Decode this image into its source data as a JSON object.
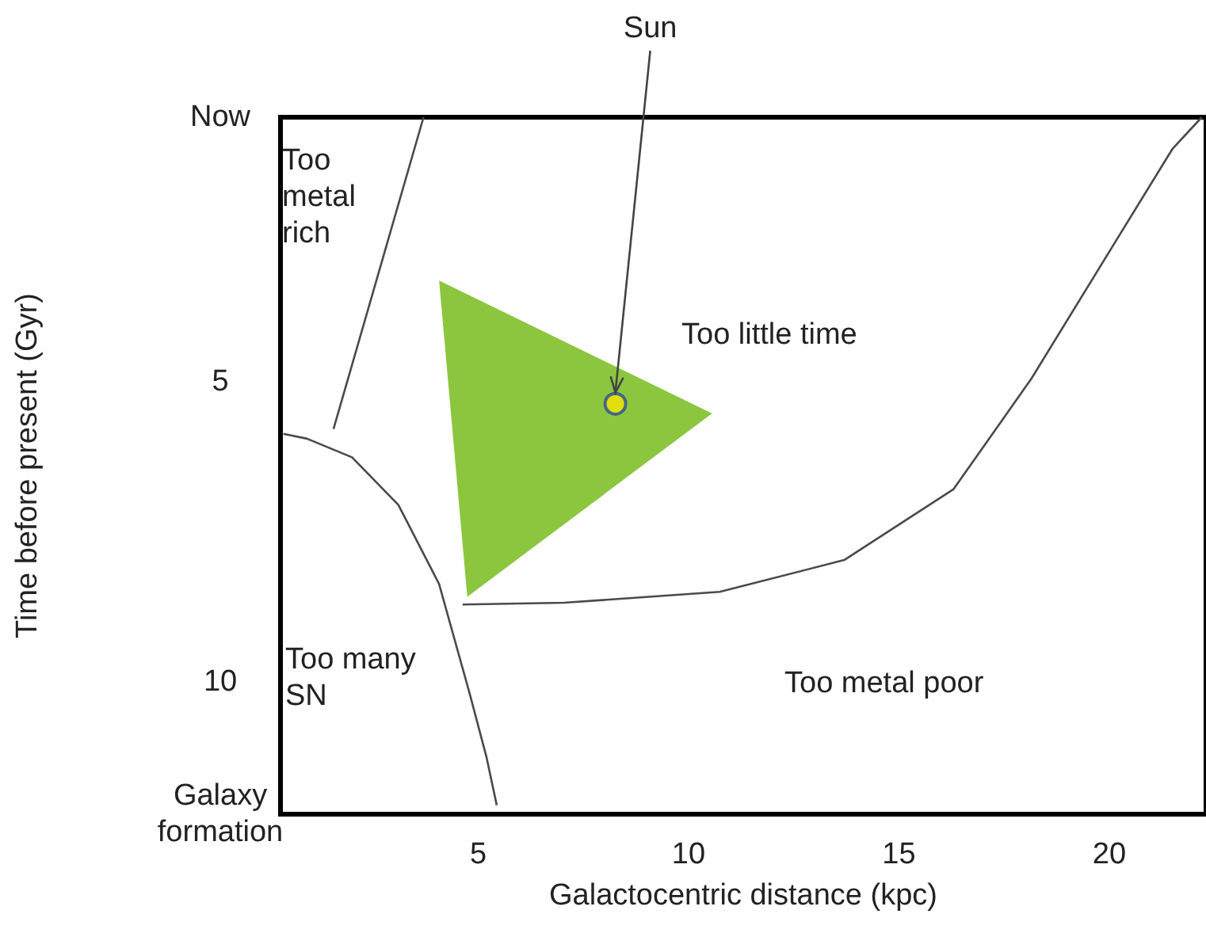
{
  "chart_data": {
    "type": "line",
    "xlabel": "Galactocentric distance (kpc)",
    "ylabel": "Time before present (Gyr)",
    "xlim": [
      0.3,
      22.3
    ],
    "ylim": [
      12.2,
      0.6
    ],
    "xticks": [
      5,
      10,
      15,
      20
    ],
    "yticks": [
      {
        "value": 0.6,
        "label": "Now"
      },
      5,
      10,
      {
        "value": 12.2,
        "label": "Galaxy\nformation"
      }
    ],
    "grid": false,
    "legend": false,
    "series": [
      {
        "color": "#4a4a4a",
        "x": [
          1.56,
          3.7
        ],
        "values": [
          5.79,
          0.6
        ]
      },
      {
        "color": "#4a4a4a",
        "x": [
          0.37,
          0.93,
          2.0,
          3.1,
          4.07,
          4.8,
          5.2,
          5.44
        ],
        "values": [
          5.87,
          5.95,
          6.26,
          7.05,
          8.37,
          10.2,
          11.26,
          12.05
        ]
      },
      {
        "color": "#4a4a4a",
        "x": [
          4.63,
          7.04,
          10.74,
          13.7,
          16.3,
          18.15,
          20.0,
          21.5,
          22.2
        ],
        "values": [
          8.71,
          8.68,
          8.5,
          7.97,
          6.79,
          4.95,
          2.84,
          1.13,
          0.6
        ]
      },
      {
        "type": "area",
        "color": "#8cc63f",
        "x": [
          4.07,
          10.56,
          4.74
        ],
        "values": [
          3.32,
          5.53,
          8.58
        ]
      },
      {
        "type": "scatter",
        "name": "Sun",
        "color": "#f5e400",
        "marker": "circle",
        "x": [
          8.26
        ],
        "values": [
          5.37
        ]
      }
    ],
    "annotations": [
      "Too\nmetal\nrich",
      "Too little time",
      "Too many\nSN",
      "Too metal poor"
    ]
  }
}
